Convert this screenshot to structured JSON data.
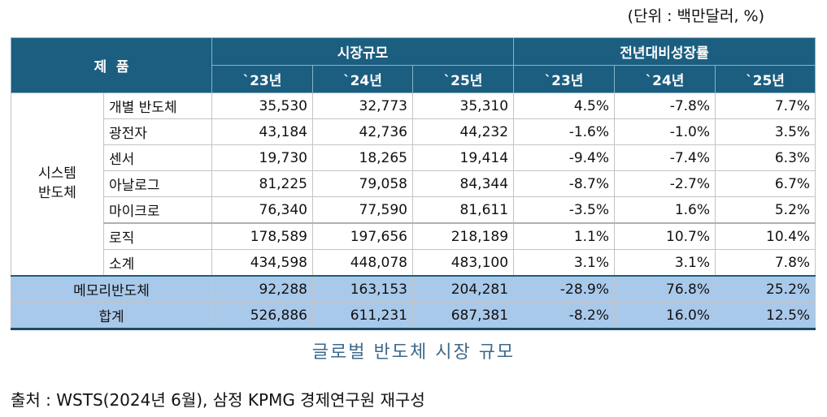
{
  "unit": "(단위 : 백만달러, %)",
  "header": {
    "product": "제  품",
    "market_size": "시장규모",
    "growth": "전년대비성장률",
    "years": [
      "`23년",
      "`24년",
      "`25년"
    ]
  },
  "group_label": "시스템\n반도체",
  "rows": [
    {
      "name": "개별 반도체",
      "size": [
        "35,530",
        "32,773",
        "35,310"
      ],
      "growth": [
        "4.5%",
        "-7.8%",
        "7.7%"
      ]
    },
    {
      "name": "광전자",
      "size": [
        "43,184",
        "42,736",
        "44,232"
      ],
      "growth": [
        "-1.6%",
        "-1.0%",
        "3.5%"
      ]
    },
    {
      "name": "센서",
      "size": [
        "19,730",
        "18,265",
        "19,414"
      ],
      "growth": [
        "-9.4%",
        "-7.4%",
        "6.3%"
      ]
    },
    {
      "name": "아날로그",
      "size": [
        "81,225",
        "79,058",
        "84,344"
      ],
      "growth": [
        "-8.7%",
        "-2.7%",
        "6.7%"
      ]
    },
    {
      "name": "마이크로",
      "size": [
        "76,340",
        "77,590",
        "81,611"
      ],
      "growth": [
        "-3.5%",
        "1.6%",
        "5.2%"
      ]
    },
    {
      "name": "로직",
      "size": [
        "178,589",
        "197,656",
        "218,189"
      ],
      "growth": [
        "1.1%",
        "10.7%",
        "10.4%"
      ]
    },
    {
      "name": "소계",
      "size": [
        "434,598",
        "448,078",
        "483,100"
      ],
      "growth": [
        "3.1%",
        "3.1%",
        "7.8%"
      ]
    }
  ],
  "memory": {
    "name": "메모리반도체",
    "size": [
      "92,288",
      "163,153",
      "204,281"
    ],
    "growth": [
      "-28.9%",
      "76.8%",
      "25.2%"
    ]
  },
  "total": {
    "name": "합계",
    "size": [
      "526,886",
      "611,231",
      "687,381"
    ],
    "growth": [
      "-8.2%",
      "16.0%",
      "12.5%"
    ]
  },
  "caption": "글로벌 반도체 시장 규모",
  "source": "출처 : WSTS(2024년 6월), 삼정 KPMG 경제연구원 재구성"
}
